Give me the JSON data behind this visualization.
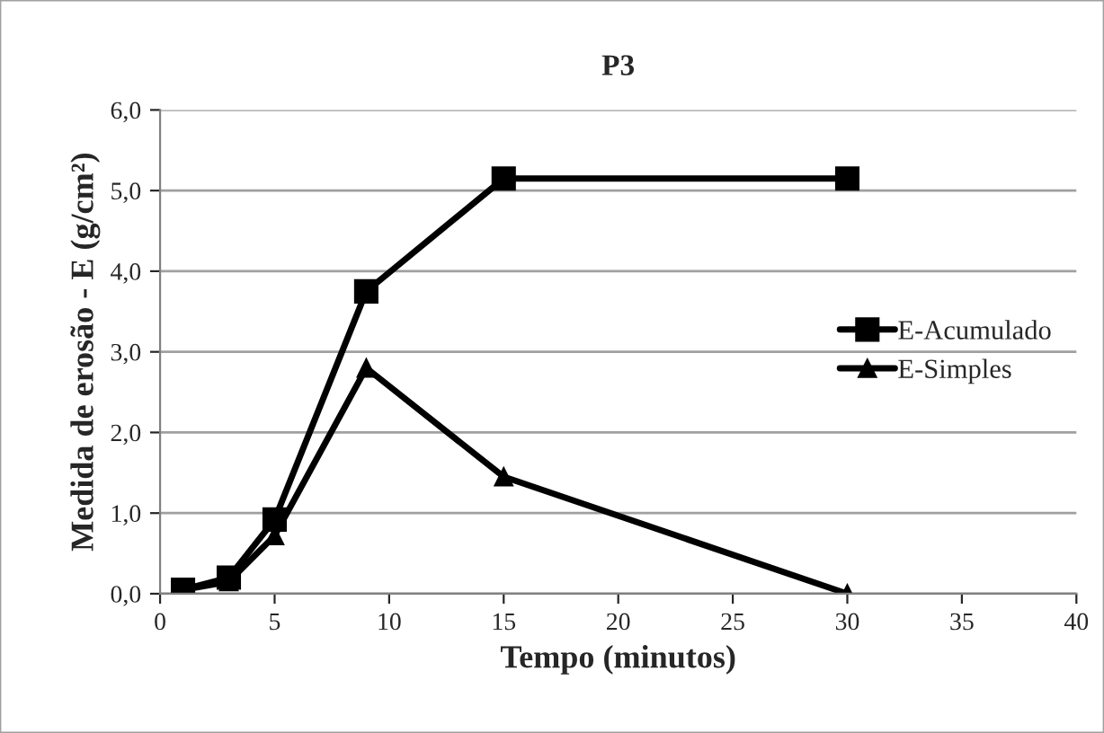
{
  "chart_data": {
    "type": "line",
    "title": "P3",
    "xlabel": "Tempo (minutos)",
    "ylabel": "Medida de erosão - E (g/cm²)",
    "series": [
      {
        "name": "E-Acumulado",
        "color": "#000000",
        "marker": "square",
        "x": [
          1,
          3,
          5,
          9,
          15,
          30
        ],
        "values": [
          0.05,
          0.2,
          0.92,
          3.75,
          5.15,
          5.15
        ]
      },
      {
        "name": "E-Simples",
        "color": "#000000",
        "marker": "triangle",
        "x": [
          1,
          3,
          5,
          9,
          15,
          30
        ],
        "values": [
          0.05,
          0.15,
          0.72,
          2.8,
          1.45,
          0.0
        ]
      }
    ],
    "xlim": [
      0,
      40
    ],
    "xticks": [
      0,
      5,
      10,
      15,
      20,
      25,
      30,
      35,
      40
    ],
    "ylim": [
      0,
      6
    ],
    "yticks": [
      {
        "value": 0,
        "label": "0,0"
      },
      {
        "value": 1,
        "label": "1,0"
      },
      {
        "value": 2,
        "label": "2,0"
      },
      {
        "value": 3,
        "label": "3,0"
      },
      {
        "value": 4,
        "label": "4,0"
      },
      {
        "value": 5,
        "label": "5,0"
      },
      {
        "value": 6,
        "label": "6,0"
      }
    ],
    "grid": "y",
    "legend": "right",
    "line_style": "solid"
  }
}
